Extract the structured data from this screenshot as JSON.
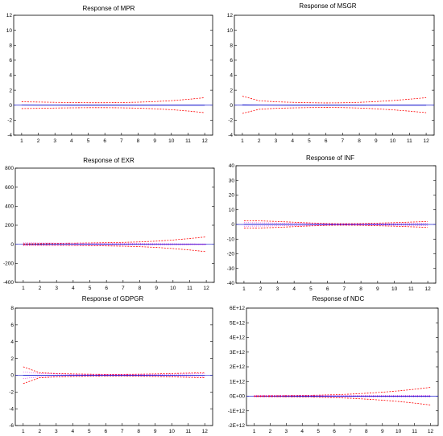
{
  "colors": {
    "response": "#1f1fd0",
    "band_upper": "#cc2200",
    "band_lower": "#e000e0",
    "band_red": "#ff0000",
    "frame": "#000000"
  },
  "chart_data": [
    {
      "type": "line",
      "title": "Response of MPR",
      "x": [
        1,
        2,
        3,
        4,
        5,
        6,
        7,
        8,
        9,
        10,
        11,
        12
      ],
      "ylim": [
        -4,
        12
      ],
      "yticks": [
        "-4",
        "-2",
        "0",
        "2",
        "4",
        "6",
        "8",
        "10",
        "12"
      ],
      "xticks": [
        "1",
        "2",
        "3",
        "4",
        "5",
        "6",
        "7",
        "8",
        "9",
        "10",
        "11",
        "12"
      ],
      "series": [
        {
          "values": [
            0.02,
            0.01,
            0.01,
            0,
            0,
            0,
            0,
            0,
            0,
            0,
            0,
            0
          ],
          "role": "response"
        },
        {
          "values": [
            0.45,
            0.42,
            0.38,
            0.35,
            0.33,
            0.33,
            0.35,
            0.4,
            0.48,
            0.6,
            0.78,
            1.0
          ],
          "role": "upper"
        },
        {
          "values": [
            -0.45,
            -0.42,
            -0.38,
            -0.35,
            -0.33,
            -0.33,
            -0.35,
            -0.4,
            -0.48,
            -0.6,
            -0.78,
            -1.0
          ],
          "role": "lower"
        }
      ]
    },
    {
      "type": "line",
      "title": "Response of MSGR",
      "x": [
        1,
        2,
        3,
        4,
        5,
        6,
        7,
        8,
        9,
        10,
        11,
        12
      ],
      "ylim": [
        -4,
        12
      ],
      "yticks": [
        "-4",
        "-2",
        "0",
        "2",
        "4",
        "6",
        "8",
        "10",
        "12"
      ],
      "xticks": [
        "1",
        "2",
        "3",
        "4",
        "5",
        "6",
        "7",
        "8",
        "9",
        "10",
        "11",
        "12"
      ],
      "series": [
        {
          "values": [
            0.05,
            0.02,
            0.01,
            0,
            0,
            0,
            0,
            0,
            0,
            0,
            0,
            0
          ],
          "role": "response"
        },
        {
          "values": [
            1.2,
            0.6,
            0.45,
            0.38,
            0.33,
            0.3,
            0.32,
            0.38,
            0.48,
            0.62,
            0.8,
            1.0
          ],
          "role": "upper"
        },
        {
          "values": [
            -1.1,
            -0.55,
            -0.42,
            -0.36,
            -0.32,
            -0.3,
            -0.32,
            -0.38,
            -0.48,
            -0.62,
            -0.8,
            -1.0
          ],
          "role": "lower"
        }
      ]
    },
    {
      "type": "line",
      "title": "Response of EXR",
      "x": [
        1,
        2,
        3,
        4,
        5,
        6,
        7,
        8,
        9,
        10,
        11,
        12
      ],
      "ylim": [
        -400,
        800
      ],
      "yticks": [
        "-400",
        "-200",
        "0",
        "200",
        "400",
        "600",
        "800"
      ],
      "xticks": [
        "1",
        "2",
        "3",
        "4",
        "5",
        "6",
        "7",
        "8",
        "9",
        "10",
        "11",
        "12"
      ],
      "series": [
        {
          "values": [
            2,
            2,
            1,
            1,
            0,
            0,
            0,
            0,
            0,
            0,
            0,
            0
          ],
          "role": "response"
        },
        {
          "values": [
            5,
            8,
            10,
            12,
            14,
            17,
            20,
            25,
            33,
            45,
            60,
            78
          ],
          "role": "upper"
        },
        {
          "values": [
            -5,
            -8,
            -10,
            -12,
            -14,
            -17,
            -20,
            -25,
            -33,
            -45,
            -60,
            -78
          ],
          "role": "lower"
        },
        {
          "values": [
            15,
            14,
            13,
            12,
            11,
            10,
            9,
            8,
            7,
            6,
            5,
            4
          ],
          "role": "inner_upper"
        },
        {
          "values": [
            -15,
            -14,
            -13,
            -12,
            -11,
            -10,
            -9,
            -8,
            -7,
            -6,
            -5,
            -4
          ],
          "role": "inner_lower"
        }
      ]
    },
    {
      "type": "line",
      "title": "Response of INF",
      "x": [
        1,
        2,
        3,
        4,
        5,
        6,
        7,
        8,
        9,
        10,
        11,
        12
      ],
      "ylim": [
        -40,
        40
      ],
      "yticks": [
        "-40",
        "-30",
        "-20",
        "-10",
        "0",
        "10",
        "20",
        "30",
        "40"
      ],
      "xticks": [
        "1",
        "2",
        "3",
        "4",
        "5",
        "6",
        "7",
        "8",
        "9",
        "10",
        "11",
        "12"
      ],
      "series": [
        {
          "values": [
            0.1,
            0.1,
            0.1,
            0,
            0,
            0,
            0,
            0,
            0,
            0,
            0,
            0
          ],
          "role": "response"
        },
        {
          "values": [
            2.5,
            2.4,
            2.0,
            1.5,
            1.0,
            0.6,
            0.5,
            0.6,
            0.9,
            1.2,
            1.6,
            2.0
          ],
          "role": "upper"
        },
        {
          "values": [
            -2.5,
            -2.4,
            -2.0,
            -1.5,
            -1.0,
            -0.6,
            -0.5,
            -0.6,
            -0.9,
            -1.2,
            -1.6,
            -2.0
          ],
          "role": "lower"
        },
        {
          "values": [
            1.2,
            1.1,
            1.0,
            0.8,
            0.6,
            0.4,
            0.3,
            0.3,
            0.4,
            0.5,
            0.6,
            0.7
          ],
          "role": "inner_upper"
        },
        {
          "values": [
            -1.2,
            -1.1,
            -1.0,
            -0.8,
            -0.6,
            -0.4,
            -0.3,
            -0.3,
            -0.4,
            -0.5,
            -0.6,
            -0.7
          ],
          "role": "inner_lower"
        }
      ]
    },
    {
      "type": "line",
      "title": "Response of GDPGR",
      "x": [
        1,
        2,
        3,
        4,
        5,
        6,
        7,
        8,
        9,
        10,
        11,
        12
      ],
      "ylim": [
        -6,
        8
      ],
      "yticks": [
        "-6",
        "-4",
        "-2",
        "0",
        "2",
        "4",
        "6",
        "8"
      ],
      "xticks": [
        "1",
        "2",
        "3",
        "4",
        "5",
        "6",
        "7",
        "8",
        "9",
        "10",
        "11",
        "12"
      ],
      "series": [
        {
          "values": [
            0,
            0,
            0,
            0,
            0,
            0,
            0,
            0,
            0,
            0,
            0,
            0
          ],
          "role": "response"
        },
        {
          "values": [
            1.0,
            0.3,
            0.2,
            0.15,
            0.12,
            0.1,
            0.1,
            0.12,
            0.15,
            0.2,
            0.25,
            0.3
          ],
          "role": "upper"
        },
        {
          "values": [
            -1.0,
            -0.3,
            -0.2,
            -0.15,
            -0.12,
            -0.1,
            -0.1,
            -0.12,
            -0.15,
            -0.2,
            -0.25,
            -0.3
          ],
          "role": "lower"
        },
        {
          "values": [
            0.4,
            0.2,
            0.15,
            0.1,
            0.08,
            0.07,
            0.07,
            0.08,
            0.1,
            0.12,
            0.15,
            0.18
          ],
          "role": "inner_upper"
        },
        {
          "values": [
            -0.4,
            -0.2,
            -0.15,
            -0.1,
            -0.08,
            -0.07,
            -0.07,
            -0.08,
            -0.1,
            -0.12,
            -0.15,
            -0.18
          ],
          "role": "inner_lower"
        }
      ]
    },
    {
      "type": "line",
      "title": "Response of NDC",
      "x": [
        1,
        2,
        3,
        4,
        5,
        6,
        7,
        8,
        9,
        10,
        11,
        12
      ],
      "ylim": [
        -2,
        6
      ],
      "yticks": [
        "-2E+12",
        "-1E+12",
        "0E+00",
        "1E+12",
        "2E+12",
        "3E+12",
        "4E+12",
        "5E+12",
        "6E+12"
      ],
      "xticks": [
        "1",
        "2",
        "3",
        "4",
        "5",
        "6",
        "7",
        "8",
        "9",
        "10",
        "11",
        "12"
      ],
      "series": [
        {
          "values": [
            0,
            0,
            0,
            0,
            0,
            0,
            0,
            0,
            0,
            0,
            0,
            0
          ],
          "role": "response"
        },
        {
          "values": [
            0.02,
            0.03,
            0.04,
            0.05,
            0.07,
            0.1,
            0.14,
            0.2,
            0.27,
            0.36,
            0.47,
            0.6
          ],
          "role": "upper"
        },
        {
          "values": [
            -0.02,
            -0.03,
            -0.04,
            -0.05,
            -0.07,
            -0.1,
            -0.14,
            -0.2,
            -0.27,
            -0.36,
            -0.47,
            -0.6
          ],
          "role": "lower"
        },
        {
          "values": [
            0.05,
            0.05,
            0.05,
            0.05,
            0.05,
            0.05,
            0.05,
            0.05,
            0.05,
            0.05,
            0.05,
            0.05
          ],
          "role": "inner_upper"
        },
        {
          "values": [
            -0.05,
            -0.05,
            -0.05,
            -0.05,
            -0.05,
            -0.05,
            -0.05,
            -0.05,
            -0.05,
            -0.05,
            -0.05,
            -0.05
          ],
          "role": "inner_lower"
        }
      ]
    }
  ]
}
